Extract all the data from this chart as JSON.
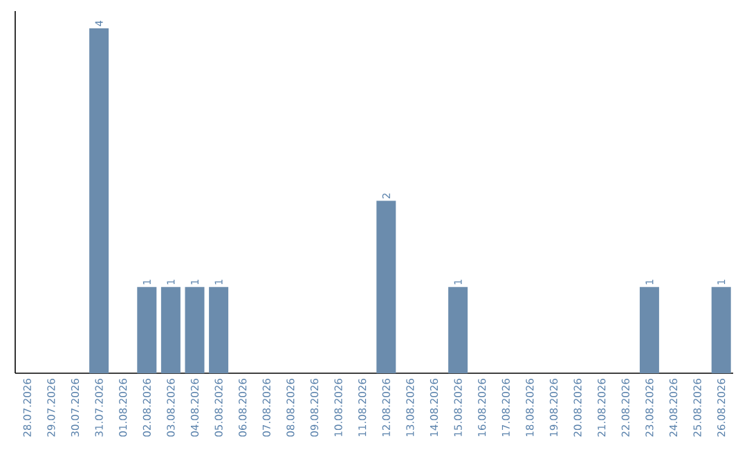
{
  "chart_data": {
    "type": "bar",
    "color": "#6b8cad",
    "tick_labels": "x",
    "categories": [
      "28.07.2026",
      "29.07.2026",
      "30.07.2026",
      "31.07.2026",
      "01.08.2026",
      "02.08.2026",
      "03.08.2026",
      "04.08.2026",
      "05.08.2026",
      "06.08.2026",
      "07.08.2026",
      "08.08.2026",
      "09.08.2026",
      "10.08.2026",
      "11.08.2026",
      "12.08.2026",
      "13.08.2026",
      "14.08.2026",
      "15.08.2026",
      "16.08.2026",
      "17.08.2026",
      "18.08.2026",
      "19.08.2026",
      "20.08.2026",
      "21.08.2026",
      "22.08.2026",
      "23.08.2026",
      "24.08.2026",
      "25.08.2026",
      "26.08.2026"
    ],
    "values": [
      0,
      0,
      0,
      4,
      0,
      1,
      1,
      1,
      1,
      0,
      0,
      0,
      0,
      0,
      0,
      2,
      0,
      0,
      1,
      0,
      0,
      0,
      0,
      0,
      0,
      0,
      1,
      0,
      0,
      1
    ],
    "value_labels": [
      null,
      null,
      null,
      "4",
      null,
      "1",
      "1",
      "1",
      "1",
      null,
      null,
      null,
      null,
      null,
      null,
      "2",
      null,
      null,
      "1",
      null,
      null,
      null,
      null,
      null,
      null,
      null,
      "1",
      null,
      null,
      "1"
    ]
  }
}
